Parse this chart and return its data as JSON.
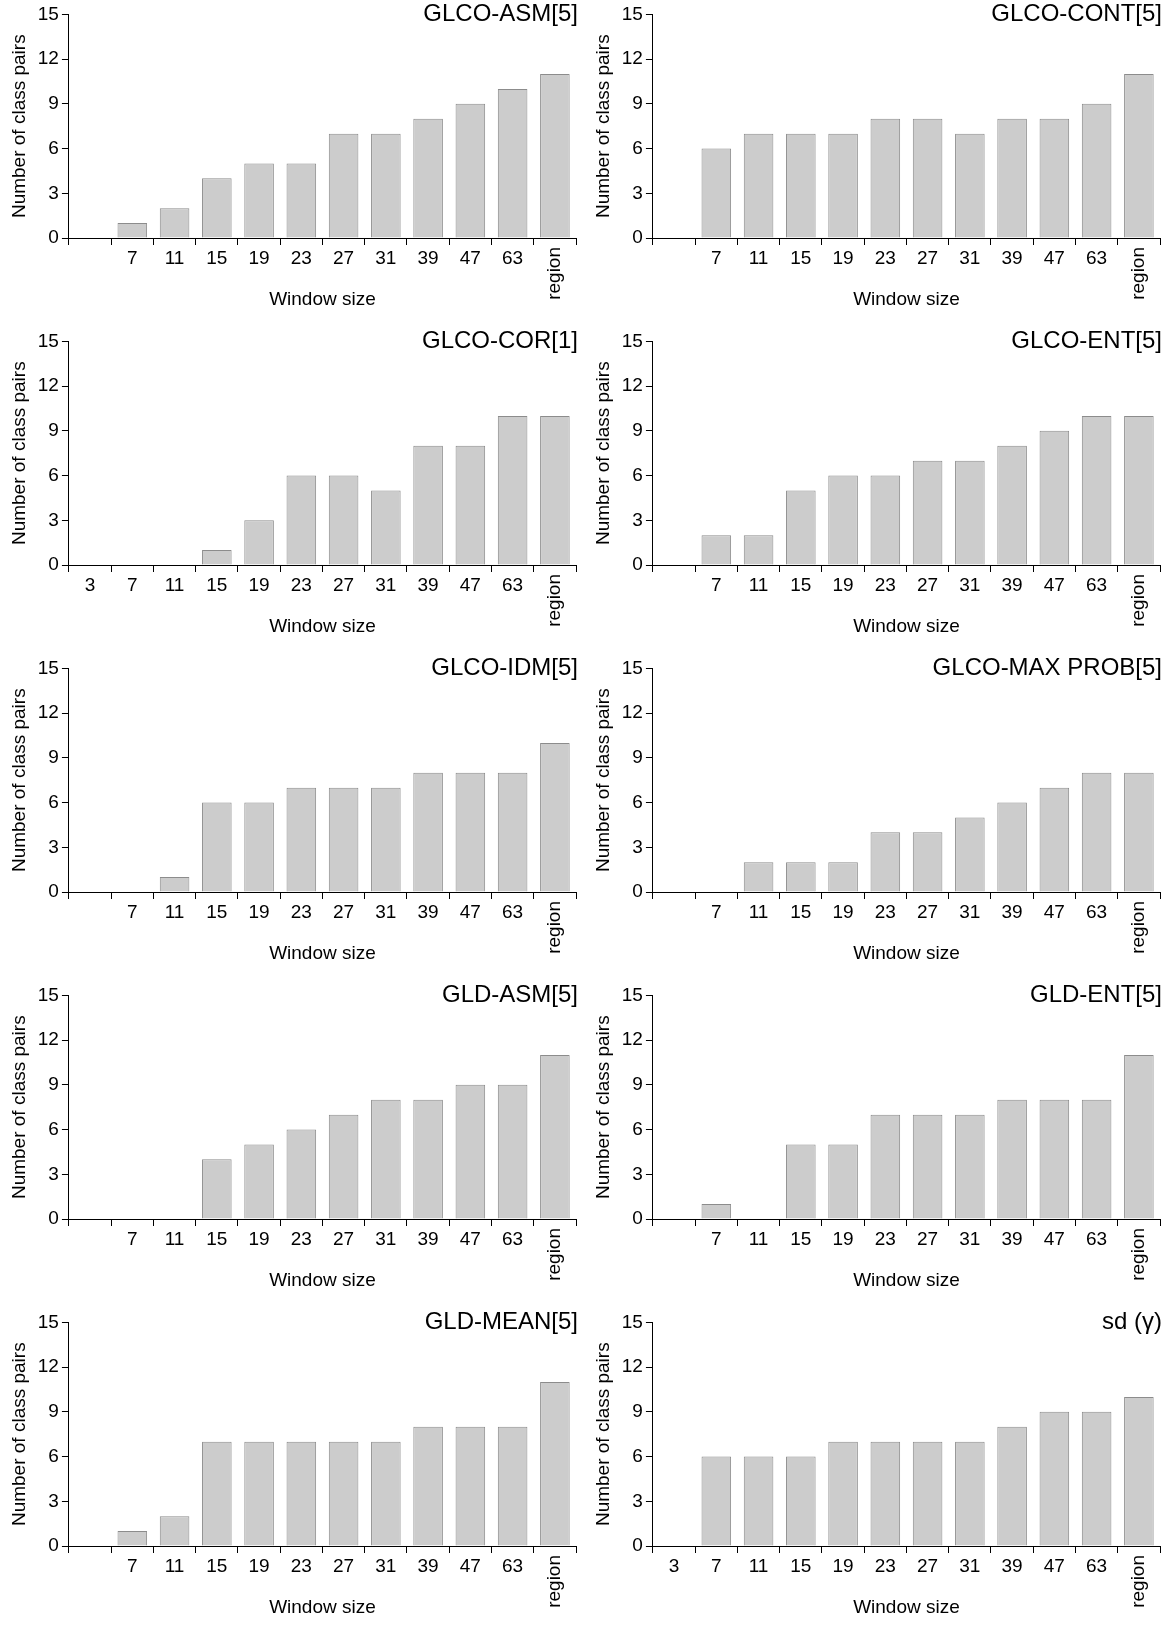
{
  "chart_data": [
    {
      "type": "bar",
      "title": "GLCO-ASM[5]",
      "xlabel": "Window size",
      "ylabel": "Number of class pairs",
      "categories": [
        null,
        "7",
        "11",
        "15",
        "19",
        "23",
        "27",
        "31",
        "39",
        "47",
        "63",
        "region"
      ],
      "values": [
        0,
        1,
        2,
        4,
        5,
        5,
        7,
        7,
        8,
        9,
        10,
        11
      ],
      "color": "#cccccc",
      "ylim": [
        0,
        15
      ],
      "yticks": [
        0,
        3,
        6,
        9,
        12,
        15
      ]
    },
    {
      "type": "bar",
      "title": "GLCO-CONT[5]",
      "xlabel": "Window size",
      "ylabel": "Number of class pairs",
      "categories": [
        null,
        "7",
        "11",
        "15",
        "19",
        "23",
        "27",
        "31",
        "39",
        "47",
        "63",
        "region"
      ],
      "values": [
        0,
        6,
        7,
        7,
        7,
        8,
        8,
        7,
        8,
        8,
        9,
        11
      ],
      "color": "#cccccc",
      "ylim": [
        0,
        15
      ],
      "yticks": [
        0,
        3,
        6,
        9,
        12,
        15
      ]
    },
    {
      "type": "bar",
      "title": "GLCO-COR[1]",
      "xlabel": "Window size",
      "ylabel": "Number of class pairs",
      "categories": [
        "3",
        "7",
        "11",
        "15",
        "19",
        "23",
        "27",
        "31",
        "39",
        "47",
        "63",
        "region"
      ],
      "values": [
        0,
        0,
        0,
        1,
        3,
        6,
        6,
        5,
        8,
        8,
        10,
        10
      ],
      "color": "#cccccc",
      "ylim": [
        0,
        15
      ],
      "yticks": [
        0,
        3,
        6,
        9,
        12,
        15
      ]
    },
    {
      "type": "bar",
      "title": "GLCO-ENT[5]",
      "xlabel": "Window size",
      "ylabel": "Number of class pairs",
      "categories": [
        null,
        "7",
        "11",
        "15",
        "19",
        "23",
        "27",
        "31",
        "39",
        "47",
        "63",
        "region"
      ],
      "values": [
        0,
        2,
        2,
        5,
        6,
        6,
        7,
        7,
        8,
        9,
        10,
        10
      ],
      "color": "#cccccc",
      "ylim": [
        0,
        15
      ],
      "yticks": [
        0,
        3,
        6,
        9,
        12,
        15
      ]
    },
    {
      "type": "bar",
      "title": "GLCO-IDM[5]",
      "xlabel": "Window size",
      "ylabel": "Number of class pairs",
      "categories": [
        null,
        "7",
        "11",
        "15",
        "19",
        "23",
        "27",
        "31",
        "39",
        "47",
        "63",
        "region"
      ],
      "values": [
        0,
        0,
        1,
        6,
        6,
        7,
        7,
        7,
        8,
        8,
        8,
        10
      ],
      "color": "#cccccc",
      "ylim": [
        0,
        15
      ],
      "yticks": [
        0,
        3,
        6,
        9,
        12,
        15
      ]
    },
    {
      "type": "bar",
      "title": "GLCO-MAX PROB[5]",
      "xlabel": "Window size",
      "ylabel": "Number of class pairs",
      "categories": [
        null,
        "7",
        "11",
        "15",
        "19",
        "23",
        "27",
        "31",
        "39",
        "47",
        "63",
        "region"
      ],
      "values": [
        0,
        0,
        2,
        2,
        2,
        4,
        4,
        5,
        6,
        7,
        8,
        8
      ],
      "color": "#cccccc",
      "ylim": [
        0,
        15
      ],
      "yticks": [
        0,
        3,
        6,
        9,
        12,
        15
      ]
    },
    {
      "type": "bar",
      "title": "GLD-ASM[5]",
      "xlabel": "Window size",
      "ylabel": "Number of class pairs",
      "categories": [
        null,
        "7",
        "11",
        "15",
        "19",
        "23",
        "27",
        "31",
        "39",
        "47",
        "63",
        "region"
      ],
      "values": [
        0,
        0,
        0,
        4,
        5,
        6,
        7,
        8,
        8,
        9,
        9,
        11
      ],
      "color": "#cccccc",
      "ylim": [
        0,
        15
      ],
      "yticks": [
        0,
        3,
        6,
        9,
        12,
        15
      ]
    },
    {
      "type": "bar",
      "title": "GLD-ENT[5]",
      "xlabel": "Window size",
      "ylabel": "Number of class pairs",
      "categories": [
        null,
        "7",
        "11",
        "15",
        "19",
        "23",
        "27",
        "31",
        "39",
        "47",
        "63",
        "region"
      ],
      "values": [
        0,
        1,
        0,
        5,
        5,
        7,
        7,
        7,
        8,
        8,
        8,
        11
      ],
      "color": "#cccccc",
      "ylim": [
        0,
        15
      ],
      "yticks": [
        0,
        3,
        6,
        9,
        12,
        15
      ]
    },
    {
      "type": "bar",
      "title": "GLD-MEAN[5]",
      "xlabel": "Window size",
      "ylabel": "Number of class pairs",
      "categories": [
        null,
        "7",
        "11",
        "15",
        "19",
        "23",
        "27",
        "31",
        "39",
        "47",
        "63",
        "region"
      ],
      "values": [
        0,
        1,
        2,
        7,
        7,
        7,
        7,
        7,
        8,
        8,
        8,
        11
      ],
      "color": "#cccccc",
      "ylim": [
        0,
        15
      ],
      "yticks": [
        0,
        3,
        6,
        9,
        12,
        15
      ]
    },
    {
      "type": "bar",
      "title": "sd (γ)",
      "xlabel": "Window size",
      "ylabel": "Number of class pairs",
      "categories": [
        "3",
        "7",
        "11",
        "15",
        "19",
        "23",
        "27",
        "31",
        "39",
        "47",
        "63",
        "region"
      ],
      "values": [
        0,
        6,
        6,
        6,
        7,
        7,
        7,
        7,
        8,
        9,
        9,
        10
      ],
      "color": "#cccccc",
      "ylim": [
        0,
        15
      ],
      "yticks": [
        0,
        3,
        6,
        9,
        12,
        15
      ]
    }
  ]
}
